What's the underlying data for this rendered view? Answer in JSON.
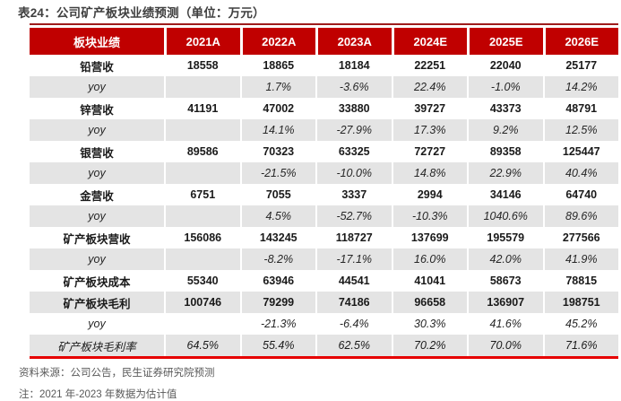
{
  "title": "表24：公司矿产板块业绩预测（单位：万元）",
  "colors": {
    "header_red": "#c00000",
    "top_rule_red": "#9e1c1c",
    "bottom_rule_red": "#e60000",
    "stripe_gray": "#e4e4e4",
    "title_gray": "#3f3f3f",
    "footer_gray": "#595959"
  },
  "table": {
    "header": [
      "板块业绩",
      "2021A",
      "2022A",
      "2023A",
      "2024E",
      "2025E",
      "2026E"
    ],
    "rows": [
      {
        "label": "铅营收",
        "style": "metric",
        "values": [
          "18558",
          "18865",
          "18184",
          "22251",
          "22040",
          "25177"
        ]
      },
      {
        "label": "yoy",
        "style": "yoy",
        "values": [
          "",
          "1.7%",
          "-3.6%",
          "22.4%",
          "-1.0%",
          "14.2%"
        ]
      },
      {
        "label": "锌营收",
        "style": "metric",
        "values": [
          "41191",
          "47002",
          "33880",
          "39727",
          "43373",
          "48791"
        ]
      },
      {
        "label": "yoy",
        "style": "yoy",
        "values": [
          "",
          "14.1%",
          "-27.9%",
          "17.3%",
          "9.2%",
          "12.5%"
        ]
      },
      {
        "label": "银营收",
        "style": "metric",
        "values": [
          "89586",
          "70323",
          "63325",
          "72727",
          "89358",
          "125447"
        ]
      },
      {
        "label": "yoy",
        "style": "yoy",
        "values": [
          "",
          "-21.5%",
          "-10.0%",
          "14.8%",
          "22.9%",
          "40.4%"
        ]
      },
      {
        "label": "金营收",
        "style": "metric",
        "values": [
          "6751",
          "7055",
          "3337",
          "2994",
          "34146",
          "64740"
        ]
      },
      {
        "label": "yoy",
        "style": "yoy",
        "values": [
          "",
          "4.5%",
          "-52.7%",
          "-10.3%",
          "1040.6%",
          "89.6%"
        ]
      },
      {
        "label": "矿产板块营收",
        "style": "metric",
        "values": [
          "156086",
          "143245",
          "118727",
          "137699",
          "195579",
          "277566"
        ]
      },
      {
        "label": "yoy",
        "style": "yoy",
        "values": [
          "",
          "-8.2%",
          "-17.1%",
          "16.0%",
          "42.0%",
          "41.9%"
        ]
      },
      {
        "label": "矿产板块成本",
        "style": "metric",
        "values": [
          "55340",
          "63946",
          "44541",
          "41041",
          "58673",
          "78815"
        ]
      },
      {
        "label": "矿产板块毛利",
        "style": "metric",
        "values": [
          "100746",
          "79299",
          "74186",
          "96658",
          "136907",
          "198751"
        ]
      },
      {
        "label": "yoy",
        "style": "yoy",
        "values": [
          "",
          "-21.3%",
          "-6.4%",
          "30.3%",
          "41.6%",
          "45.2%"
        ]
      },
      {
        "label": "矿产板块毛利率",
        "style": "ratio",
        "values": [
          "64.5%",
          "55.4%",
          "62.5%",
          "70.2%",
          "70.0%",
          "71.6%"
        ]
      }
    ]
  },
  "footer": {
    "source": "资料来源：公司公告，民生证券研究院预测",
    "note": "注：2021 年-2023 年数据为估计值"
  }
}
